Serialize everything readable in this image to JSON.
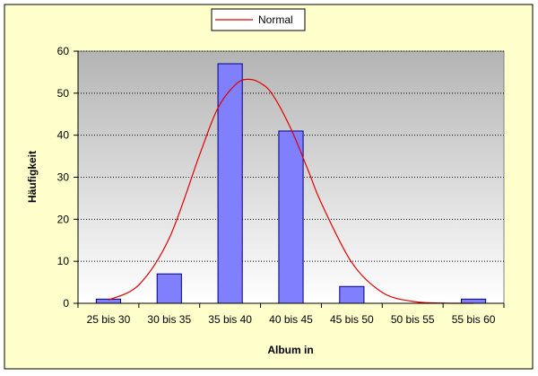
{
  "colors": {
    "chart_area": "#ffffcc",
    "plot_top": "#b4b4b4",
    "plot_bottom": "#ffffff",
    "bar_fill": "#8080ff",
    "bar_stroke": "#000080",
    "curve": "#e00000",
    "gridline": "#000000"
  },
  "chart_data": {
    "type": "bar",
    "categories": [
      "25 bis 30",
      "30 bis 35",
      "35 bis 40",
      "40 bis 45",
      "45 bis 50",
      "50 bis 55",
      "55 bis 60"
    ],
    "series": [
      {
        "values": [
          1,
          7,
          57,
          41,
          4,
          0,
          1
        ]
      },
      {
        "name": "Normal",
        "type": "line",
        "x": [
          27.5,
          30,
          32.5,
          35,
          36.5,
          38,
          39,
          40,
          41,
          42.5,
          44,
          45,
          47.5,
          50,
          52.5,
          55,
          57.5
        ],
        "y": [
          0.8,
          4.4,
          15.5,
          35.4,
          46.5,
          52.2,
          53.3,
          52.4,
          49.6,
          41.5,
          31.0,
          23.8,
          9.7,
          2.6,
          0.45,
          0.05,
          0.0
        ]
      }
    ],
    "xlabel": "Album in",
    "ylabel": "Häufigkeit",
    "ylim": [
      0,
      60
    ],
    "yticks": [
      0,
      10,
      20,
      30,
      40,
      50,
      60
    ],
    "grid": true,
    "legend_position": "top-center"
  }
}
